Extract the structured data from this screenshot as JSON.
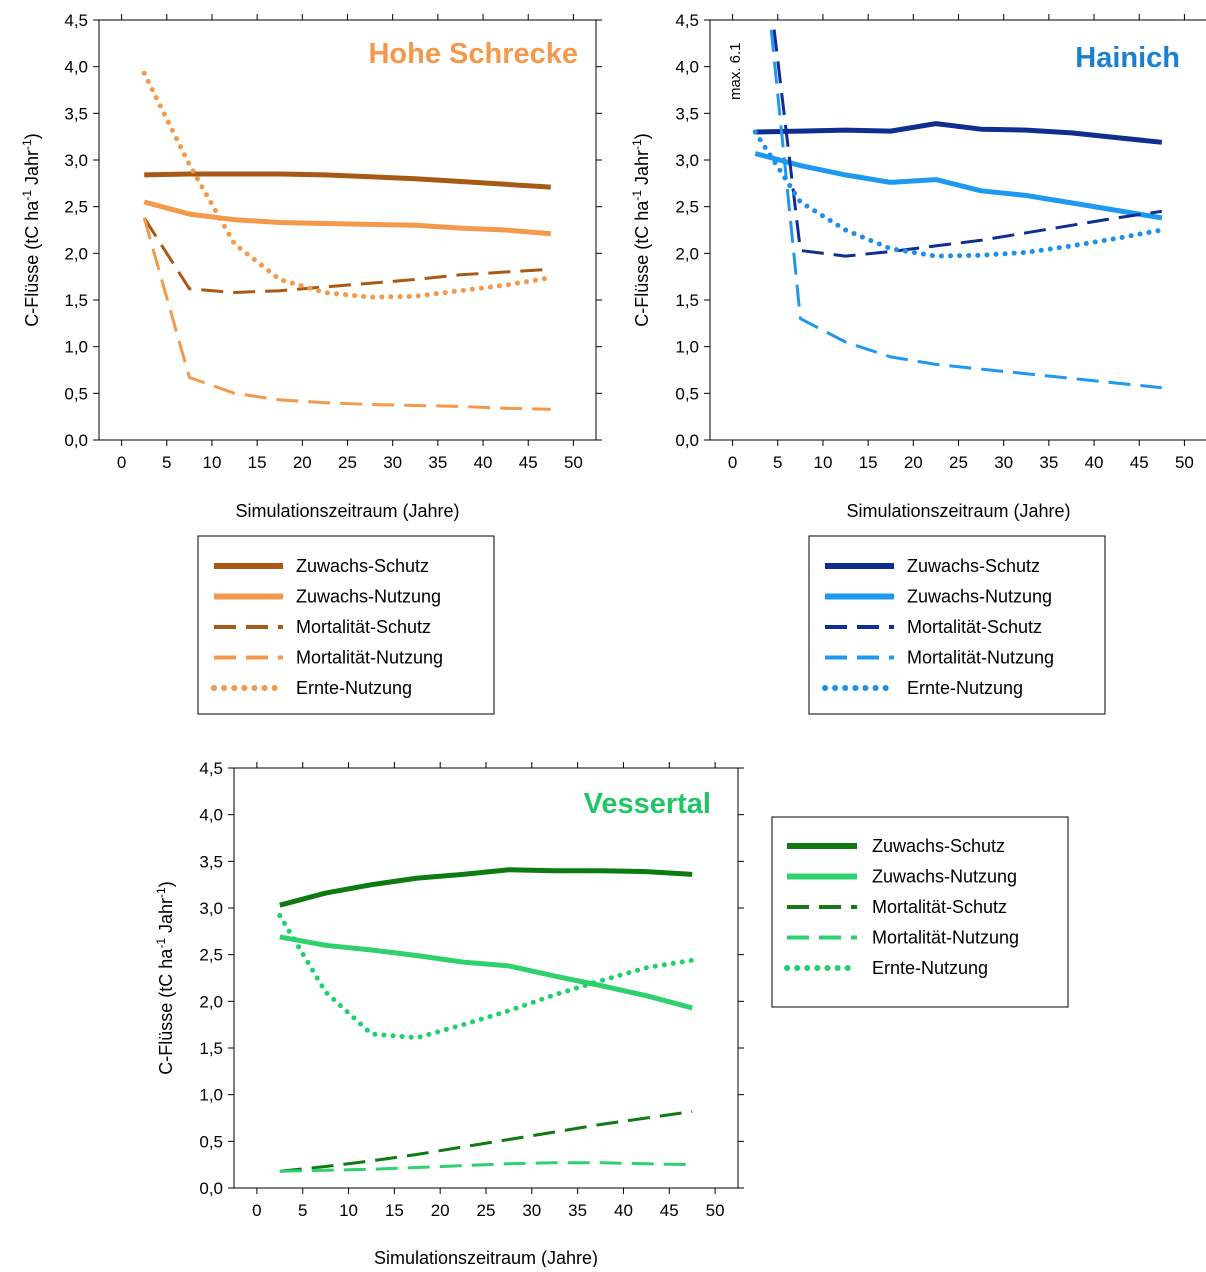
{
  "chart_data": [
    {
      "type": "line",
      "title": "Hohe Schrecke",
      "title_color": "#F4994C",
      "xlabel": "Simulationszeitraum (Jahre)",
      "ylabel": {
        "prefix": "C-Flüsse (tC ha",
        "sup1": "-1",
        "mid": " Jahr",
        "sup2": "-1",
        "suffix": ")"
      },
      "xlim": [
        -2.5,
        52.5
      ],
      "ylim": [
        0,
        4.5
      ],
      "xticks": [
        "0",
        "5",
        "10",
        "15",
        "20",
        "25",
        "30",
        "35",
        "40",
        "45",
        "50"
      ],
      "yticks": [
        "0,0",
        "0,5",
        "1,0",
        "1,5",
        "2,0",
        "2,5",
        "3,0",
        "3,5",
        "4,0",
        "4,5"
      ],
      "legend_position": "below",
      "series": [
        {
          "name": "Zuwachs-Schutz",
          "color": "#A85A14",
          "style": "solid",
          "width": 5,
          "x": [
            2.5,
            7.5,
            12.5,
            17.5,
            22.5,
            27.5,
            32.5,
            37.5,
            42.5,
            47.5
          ],
          "y": [
            2.84,
            2.85,
            2.85,
            2.85,
            2.84,
            2.82,
            2.8,
            2.77,
            2.74,
            2.71
          ]
        },
        {
          "name": "Zuwachs-Nutzung",
          "color": "#F4994C",
          "style": "solid",
          "width": 5,
          "x": [
            2.5,
            7.5,
            12.5,
            17.5,
            22.5,
            27.5,
            32.5,
            37.5,
            42.5,
            47.5
          ],
          "y": [
            2.55,
            2.42,
            2.36,
            2.33,
            2.32,
            2.31,
            2.3,
            2.27,
            2.25,
            2.21
          ]
        },
        {
          "name": "Mortalität-Schutz",
          "color": "#A85A14",
          "style": "dash",
          "width": 3,
          "x": [
            2.5,
            7.5,
            12.5,
            17.5,
            22.5,
            27.5,
            32.5,
            37.5,
            42.5,
            47.5
          ],
          "y": [
            2.38,
            1.62,
            1.58,
            1.6,
            1.64,
            1.68,
            1.72,
            1.77,
            1.8,
            1.83
          ]
        },
        {
          "name": "Mortalität-Nutzung",
          "color": "#F4994C",
          "style": "dash",
          "width": 3,
          "x": [
            2.5,
            7.5,
            12.5,
            17.5,
            22.5,
            27.5,
            32.5,
            37.5,
            42.5,
            47.5
          ],
          "y": [
            2.38,
            0.67,
            0.5,
            0.43,
            0.4,
            0.38,
            0.37,
            0.36,
            0.34,
            0.33
          ]
        },
        {
          "name": "Ernte-Nutzung",
          "color": "#F4994C",
          "style": "dot",
          "width": 5,
          "x": [
            2.5,
            7.5,
            12.5,
            17.5,
            22.5,
            27.5,
            32.5,
            37.5,
            42.5,
            47.5
          ],
          "y": [
            3.93,
            2.95,
            2.1,
            1.72,
            1.58,
            1.53,
            1.54,
            1.6,
            1.66,
            1.74
          ]
        }
      ]
    },
    {
      "type": "line",
      "title": "Hainich",
      "title_color": "#1B80D0",
      "annotation": "max. 6.1",
      "xlabel": "Simulationszeitraum (Jahre)",
      "ylabel": {
        "prefix": "C-Flüsse (tC ha",
        "sup1": "-1",
        "mid": " Jahr",
        "sup2": "-1",
        "suffix": ")"
      },
      "xlim": [
        -2.5,
        52.5
      ],
      "ylim": [
        0,
        4.5
      ],
      "xticks": [
        "0",
        "5",
        "10",
        "15",
        "20",
        "25",
        "30",
        "35",
        "40",
        "45",
        "50"
      ],
      "yticks": [
        "0,0",
        "0,5",
        "1,0",
        "1,5",
        "2,0",
        "2,5",
        "3,0",
        "3,5",
        "4,0",
        "4,5"
      ],
      "legend_position": "below",
      "series": [
        {
          "name": "Zuwachs-Schutz",
          "color": "#0F2E8F",
          "style": "solid",
          "width": 5,
          "x": [
            2.5,
            7.5,
            12.5,
            17.5,
            22.5,
            27.5,
            32.5,
            37.5,
            42.5,
            47.5
          ],
          "y": [
            3.3,
            3.31,
            3.32,
            3.31,
            3.39,
            3.33,
            3.32,
            3.29,
            3.24,
            3.19
          ]
        },
        {
          "name": "Zuwachs-Nutzung",
          "color": "#1F99F0",
          "style": "solid",
          "width": 5,
          "x": [
            2.5,
            7.5,
            12.5,
            17.5,
            22.5,
            27.5,
            32.5,
            37.5,
            42.5,
            47.5
          ],
          "y": [
            3.07,
            2.94,
            2.84,
            2.76,
            2.79,
            2.67,
            2.62,
            2.54,
            2.46,
            2.38
          ]
        },
        {
          "name": "Mortalität-Schutz",
          "color": "#0F2E8F",
          "style": "dash",
          "width": 3,
          "x": [
            2.5,
            7.5,
            12.5,
            17.5,
            22.5,
            27.5,
            32.5,
            37.5,
            42.5,
            47.5
          ],
          "y": [
            6.1,
            2.03,
            1.97,
            2.02,
            2.08,
            2.14,
            2.22,
            2.3,
            2.38,
            2.45
          ]
        },
        {
          "name": "Mortalität-Nutzung",
          "color": "#1F99F0",
          "style": "dash",
          "width": 3,
          "x": [
            2.5,
            7.5,
            12.5,
            17.5,
            22.5,
            27.5,
            32.5,
            37.5,
            42.5,
            47.5
          ],
          "y": [
            6.1,
            1.3,
            1.05,
            0.89,
            0.81,
            0.76,
            0.71,
            0.66,
            0.61,
            0.56
          ]
        },
        {
          "name": "Ernte-Nutzung",
          "color": "#1F8FEA",
          "style": "dot",
          "width": 5,
          "x": [
            2.5,
            7.5,
            12.5,
            17.5,
            22.5,
            27.5,
            32.5,
            37.5,
            42.5,
            47.5
          ],
          "y": [
            3.3,
            2.55,
            2.25,
            2.05,
            1.97,
            1.98,
            2.01,
            2.08,
            2.16,
            2.25
          ]
        }
      ]
    },
    {
      "type": "line",
      "title": "Vessertal",
      "title_color": "#1FC665",
      "xlabel": "Simulationszeitraum (Jahre)",
      "ylabel": {
        "prefix": "C-Flüsse (tC ha",
        "sup1": "-1",
        "mid": " Jahr",
        "sup2": "-1",
        "suffix": ")"
      },
      "xlim": [
        -2.5,
        52.5
      ],
      "ylim": [
        0,
        4.5
      ],
      "xticks": [
        "0",
        "5",
        "10",
        "15",
        "20",
        "25",
        "30",
        "35",
        "40",
        "45",
        "50"
      ],
      "yticks": [
        "0,0",
        "0,5",
        "1,0",
        "1,5",
        "2,0",
        "2,5",
        "3,0",
        "3,5",
        "4,0",
        "4,5"
      ],
      "legend_position": "right",
      "series": [
        {
          "name": "Zuwachs-Schutz",
          "color": "#0E7A12",
          "style": "solid",
          "width": 5,
          "x": [
            2.5,
            7.5,
            12.5,
            17.5,
            22.5,
            27.5,
            32.5,
            37.5,
            42.5,
            47.5
          ],
          "y": [
            3.03,
            3.16,
            3.25,
            3.32,
            3.36,
            3.41,
            3.4,
            3.4,
            3.39,
            3.36
          ]
        },
        {
          "name": "Zuwachs-Nutzung",
          "color": "#2FD16E",
          "style": "solid",
          "width": 5,
          "x": [
            2.5,
            7.5,
            12.5,
            17.5,
            22.5,
            27.5,
            32.5,
            37.5,
            42.5,
            47.5
          ],
          "y": [
            2.69,
            2.6,
            2.55,
            2.49,
            2.42,
            2.38,
            2.27,
            2.17,
            2.06,
            1.93
          ]
        },
        {
          "name": "Mortalität-Schutz",
          "color": "#0E7A12",
          "style": "dash",
          "width": 3,
          "x": [
            2.5,
            7.5,
            12.5,
            17.5,
            22.5,
            27.5,
            32.5,
            37.5,
            42.5,
            47.5
          ],
          "y": [
            0.18,
            0.23,
            0.29,
            0.36,
            0.44,
            0.52,
            0.6,
            0.68,
            0.75,
            0.82
          ]
        },
        {
          "name": "Mortalität-Nutzung",
          "color": "#2FD16E",
          "style": "dash",
          "width": 3,
          "x": [
            2.5,
            7.5,
            12.5,
            17.5,
            22.5,
            27.5,
            32.5,
            37.5,
            42.5,
            47.5
          ],
          "y": [
            0.18,
            0.19,
            0.2,
            0.22,
            0.24,
            0.26,
            0.27,
            0.27,
            0.26,
            0.25
          ]
        },
        {
          "name": "Ernte-Nutzung",
          "color": "#1FD16A",
          "style": "dot",
          "width": 5,
          "x": [
            2.5,
            7.5,
            12.5,
            17.5,
            22.5,
            27.5,
            32.5,
            37.5,
            42.5,
            47.5
          ],
          "y": [
            2.92,
            2.1,
            1.65,
            1.61,
            1.75,
            1.9,
            2.07,
            2.22,
            2.36,
            2.44
          ]
        }
      ]
    }
  ]
}
